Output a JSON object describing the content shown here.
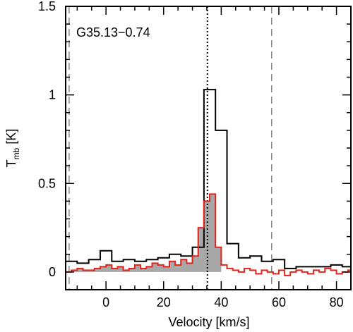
{
  "chart_data": {
    "type": "line",
    "title": "",
    "annotation": "G35.13−0.74",
    "xlabel": "Velocity [km/s]",
    "ylabel_main": "T",
    "ylabel_sub": "mb",
    "ylabel_unit": " [K]",
    "xlim": [
      -14,
      85
    ],
    "ylim": [
      -0.1,
      1.5
    ],
    "x_ticks": [
      0,
      20,
      40,
      60,
      80
    ],
    "x_tick_labels": [
      "0",
      "20",
      "40",
      "60",
      "80"
    ],
    "y_ticks": [
      0,
      0.5,
      1,
      1.5
    ],
    "y_tick_labels": [
      "0",
      "0.5",
      "1",
      "1.5"
    ],
    "grid": false,
    "colors": {
      "black_series": "#000000",
      "red_series": "#e0241b",
      "fill": "#a8a8a8",
      "vlines": "#888888"
    },
    "vlines": [
      {
        "x": -12.8,
        "style": "dashed"
      },
      {
        "x": 35.2,
        "style": "dotted"
      },
      {
        "x": 57.5,
        "style": "dashed"
      }
    ],
    "series": [
      {
        "step_width": 4,
        "x": [
          -14,
          -10,
          -6,
          -2,
          2,
          6,
          10,
          14,
          18,
          22,
          26,
          30,
          34,
          38,
          42,
          46,
          50,
          54,
          58,
          62,
          66,
          70,
          74,
          78,
          82
        ],
        "values": [
          0.06,
          0.05,
          0.07,
          0.12,
          0.06,
          0.07,
          0.06,
          0.07,
          0.08,
          0.1,
          0.09,
          0.14,
          1.03,
          0.8,
          0.16,
          0.08,
          0.09,
          0.06,
          0.07,
          0.02,
          0.03,
          0.03,
          0.03,
          0.04,
          0.03
        ]
      },
      {
        "step_width": 2,
        "x": [
          -14,
          -12,
          -10,
          -8,
          -6,
          -4,
          -2,
          0,
          2,
          4,
          6,
          8,
          10,
          12,
          14,
          16,
          18,
          20,
          22,
          24,
          26,
          28,
          30,
          32,
          34,
          36,
          38,
          40,
          42,
          44,
          46,
          48,
          50,
          52,
          54,
          56,
          58,
          60,
          62,
          64,
          66,
          68,
          70,
          72,
          74,
          76,
          78,
          80,
          82,
          84
        ],
        "values": [
          0.0,
          0.01,
          0.02,
          0.01,
          0.01,
          0.02,
          0.03,
          0.04,
          0.02,
          0.03,
          0.01,
          0.02,
          0.04,
          0.02,
          0.03,
          0.05,
          0.04,
          0.03,
          0.06,
          0.04,
          0.07,
          0.05,
          0.09,
          0.25,
          0.4,
          0.44,
          0.14,
          0.04,
          0.02,
          0.01,
          0.0,
          0.02,
          0.01,
          -0.01,
          0.01,
          0.0,
          -0.01,
          0.01,
          -0.02,
          0.0,
          0.01,
          0.0,
          -0.01,
          0.01,
          0.0,
          0.02,
          0.01,
          -0.01,
          0.0,
          0.01
        ],
        "filled_range": [
          -14,
          40
        ]
      }
    ]
  }
}
